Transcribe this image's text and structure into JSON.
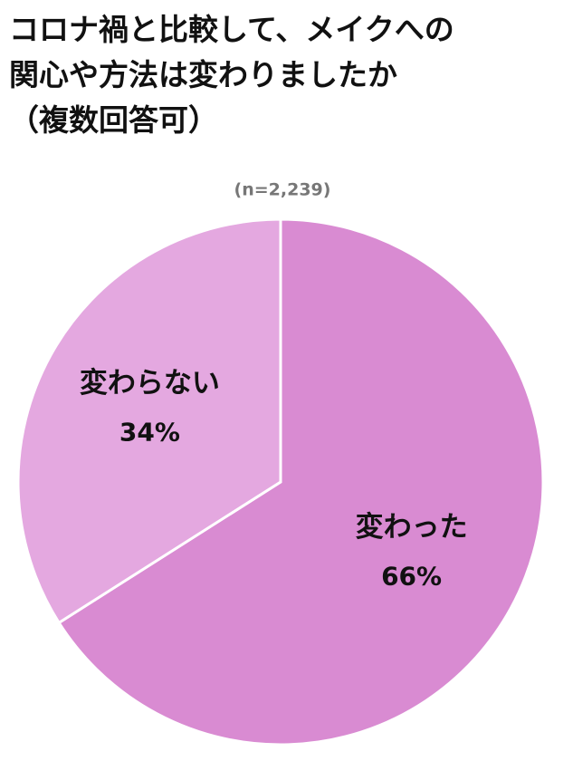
{
  "chart_data": {
    "type": "pie",
    "title": "コロナ禍と比較して、メイクへの\n関心や方法は変わりましたか\n（複数回答可）",
    "subtitle": "(n=2,239)",
    "categories": [
      "変わった",
      "変わらない"
    ],
    "values": [
      66,
      34
    ],
    "value_labels": [
      "66%",
      "34%"
    ],
    "colors": [
      "#d98bd2",
      "#e4a8e0"
    ]
  }
}
